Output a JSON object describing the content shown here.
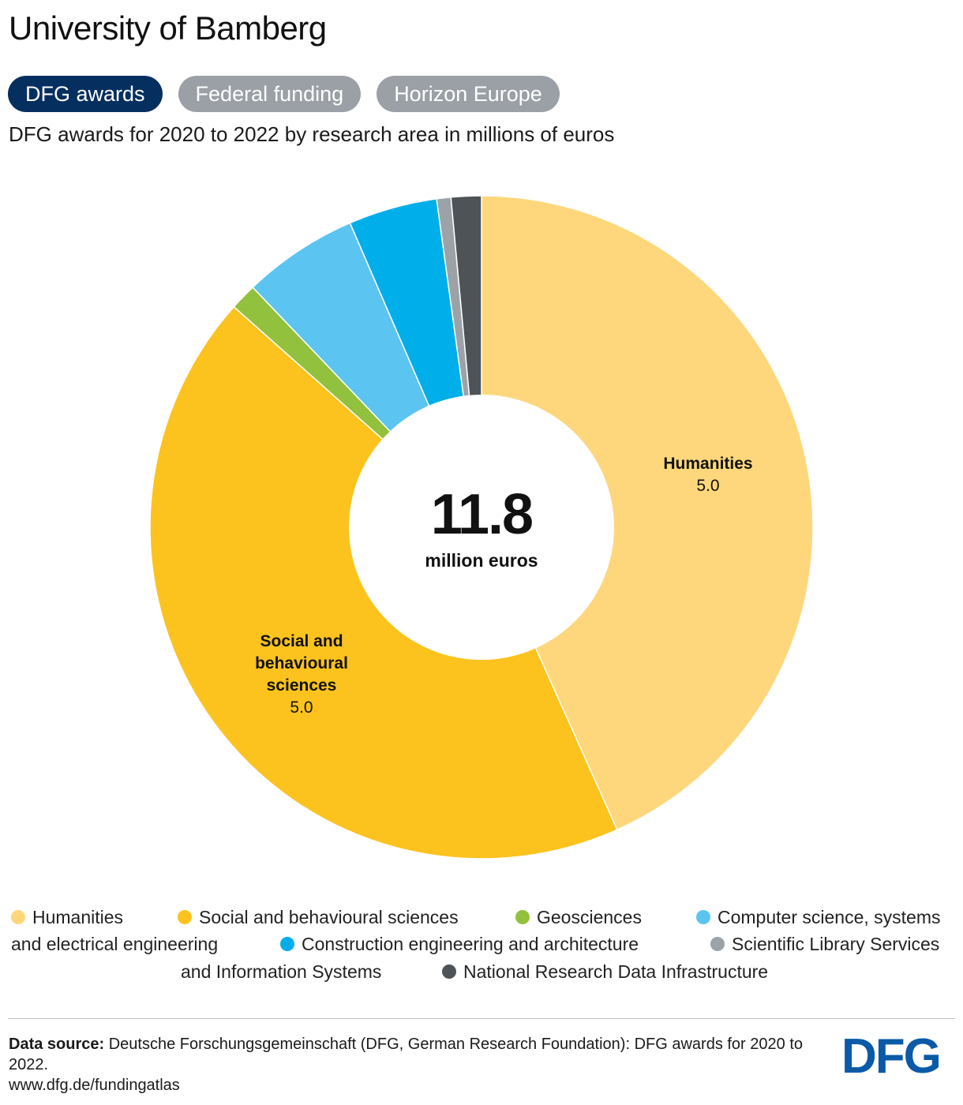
{
  "page": {
    "title": "University of Bamberg",
    "tabs": [
      {
        "label": "DFG awards",
        "active": true
      },
      {
        "label": "Federal funding",
        "active": false
      },
      {
        "label": "Horizon Europe",
        "active": false
      }
    ],
    "subtitle": "DFG awards for 2020 to 2022 by research area in millions of euros",
    "center": {
      "value": "11.8",
      "unit": "million euros"
    },
    "source": {
      "label": "Data source:",
      "text": "Deutsche Forschungsgemeinschaft (DFG, German Research Foundation): DFG awards for 2020 to 2022.",
      "url": "www.dfg.de/fundingatlas"
    },
    "logo": "DFG",
    "logo_color": "#0a5aa8"
  },
  "chart_data": {
    "type": "pie",
    "donut": true,
    "total": 11.8,
    "unit": "million euros",
    "series": [
      {
        "name": "Humanities",
        "value": 5.0,
        "label": "5.0",
        "color": "#fed77c"
      },
      {
        "name": "Social and behavioural sciences",
        "value": 5.0,
        "label": "5.0",
        "color": "#fcc31e"
      },
      {
        "name": "Geosciences",
        "value": 0.15,
        "color": "#92c13e"
      },
      {
        "name": "Computer science, systems and electrical engineering",
        "value": 0.65,
        "color": "#5bc4f1"
      },
      {
        "name": "Construction engineering and architecture",
        "value": 0.5,
        "color": "#00aeea"
      },
      {
        "name": "Scientific Library Services and Information Systems",
        "value": 0.08,
        "color": "#9ba3a8"
      },
      {
        "name": "National Research Data Infrastructure",
        "value": 0.17,
        "color": "#4d5357"
      }
    ],
    "legend_position": "bottom"
  }
}
